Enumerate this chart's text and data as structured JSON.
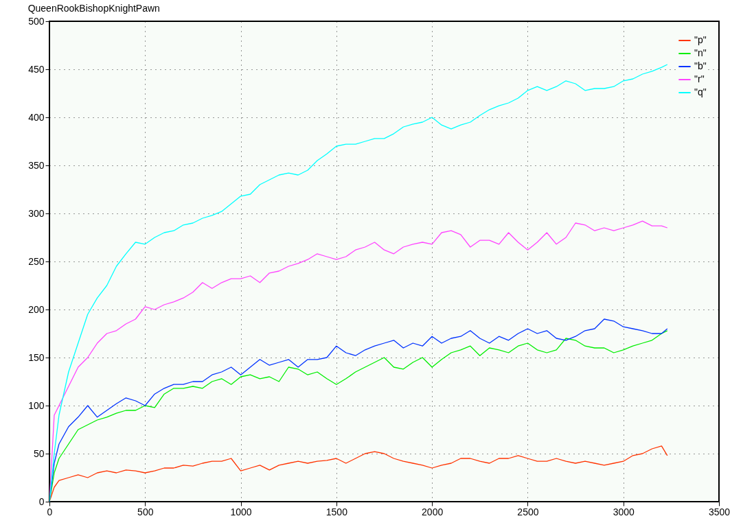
{
  "chart_data": {
    "type": "line",
    "annotations": [
      "QueenRookBishopKnightPawn"
    ],
    "x": [
      0,
      25,
      50,
      100,
      150,
      200,
      250,
      300,
      350,
      400,
      450,
      500,
      550,
      600,
      650,
      700,
      750,
      800,
      850,
      900,
      950,
      1000,
      1050,
      1100,
      1150,
      1200,
      1250,
      1300,
      1350,
      1400,
      1450,
      1500,
      1550,
      1600,
      1650,
      1700,
      1750,
      1800,
      1850,
      1900,
      1950,
      2000,
      2050,
      2100,
      2150,
      2200,
      2250,
      2300,
      2350,
      2400,
      2450,
      2500,
      2550,
      2600,
      2650,
      2700,
      2750,
      2800,
      2850,
      2900,
      2950,
      3000,
      3050,
      3100,
      3150,
      3200,
      3230
    ],
    "series": [
      {
        "name": "\"p\"",
        "color": "#ff3300",
        "values": [
          0,
          15,
          22,
          25,
          28,
          25,
          30,
          32,
          30,
          33,
          32,
          30,
          32,
          35,
          35,
          38,
          37,
          40,
          42,
          42,
          45,
          32,
          35,
          38,
          33,
          38,
          40,
          42,
          40,
          42,
          43,
          45,
          40,
          45,
          50,
          52,
          50,
          45,
          42,
          40,
          38,
          35,
          38,
          40,
          45,
          45,
          42,
          40,
          45,
          45,
          48,
          45,
          42,
          42,
          45,
          42,
          40,
          42,
          40,
          38,
          40,
          42,
          48,
          50,
          55,
          58,
          48
        ]
      },
      {
        "name": "\"n\"",
        "color": "#00ee00",
        "values": [
          0,
          30,
          45,
          60,
          75,
          80,
          85,
          88,
          92,
          95,
          95,
          100,
          98,
          112,
          118,
          118,
          120,
          118,
          125,
          128,
          122,
          130,
          132,
          128,
          130,
          125,
          140,
          138,
          132,
          135,
          128,
          122,
          128,
          135,
          140,
          145,
          150,
          140,
          138,
          145,
          150,
          140,
          148,
          155,
          158,
          162,
          152,
          160,
          158,
          155,
          162,
          165,
          158,
          155,
          158,
          170,
          168,
          162,
          160,
          160,
          155,
          158,
          162,
          165,
          168,
          175,
          178
        ]
      },
      {
        "name": "\"b\"",
        "color": "#0033ff",
        "values": [
          0,
          40,
          60,
          78,
          88,
          100,
          88,
          95,
          102,
          108,
          105,
          100,
          112,
          118,
          122,
          122,
          125,
          125,
          132,
          135,
          140,
          132,
          140,
          148,
          142,
          145,
          148,
          140,
          148,
          148,
          150,
          162,
          155,
          152,
          158,
          162,
          165,
          168,
          160,
          165,
          162,
          172,
          165,
          170,
          172,
          178,
          170,
          165,
          172,
          168,
          175,
          180,
          175,
          178,
          170,
          168,
          172,
          178,
          180,
          190,
          188,
          182,
          180,
          178,
          175,
          175,
          180
        ]
      },
      {
        "name": "\"r\"",
        "color": "#ff44ff",
        "values": [
          0,
          90,
          100,
          120,
          140,
          150,
          165,
          175,
          178,
          185,
          190,
          203,
          200,
          205,
          208,
          212,
          218,
          228,
          222,
          228,
          232,
          232,
          235,
          228,
          238,
          240,
          245,
          248,
          252,
          258,
          255,
          252,
          255,
          262,
          265,
          270,
          262,
          258,
          265,
          268,
          270,
          268,
          280,
          282,
          278,
          265,
          272,
          272,
          268,
          280,
          270,
          262,
          270,
          280,
          268,
          275,
          290,
          288,
          282,
          285,
          282,
          285,
          288,
          292,
          287,
          287,
          285
        ]
      },
      {
        "name": "\"q\"",
        "color": "#00ffff",
        "values": [
          0,
          50,
          90,
          135,
          165,
          195,
          212,
          225,
          245,
          258,
          270,
          268,
          275,
          280,
          282,
          288,
          290,
          295,
          298,
          302,
          310,
          318,
          320,
          330,
          335,
          340,
          342,
          340,
          345,
          355,
          362,
          370,
          372,
          372,
          375,
          378,
          378,
          383,
          390,
          393,
          395,
          400,
          392,
          388,
          392,
          395,
          402,
          408,
          412,
          415,
          420,
          428,
          432,
          428,
          432,
          438,
          435,
          428,
          430,
          430,
          432,
          438,
          440,
          445,
          448,
          452,
          455
        ]
      }
    ],
    "xlim": [
      0,
      3500
    ],
    "xticks": [
      0,
      500,
      1000,
      1500,
      2000,
      2500,
      3000,
      3500
    ],
    "ylim": [
      0,
      500
    ],
    "yticks": [
      0,
      50,
      100,
      150,
      200,
      250,
      300,
      350,
      400,
      450,
      500
    ],
    "grid": true,
    "legend": "top right",
    "line_style": "solid"
  }
}
